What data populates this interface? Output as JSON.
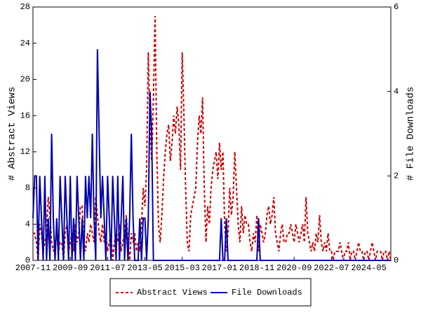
{
  "chart_data": {
    "type": "line",
    "x": [
      "2007-11",
      "2007-12",
      "2008-01",
      "2008-02",
      "2008-03",
      "2008-04",
      "2008-05",
      "2008-06",
      "2008-07",
      "2008-08",
      "2008-09",
      "2008-10",
      "2008-11",
      "2008-12",
      "2009-01",
      "2009-02",
      "2009-03",
      "2009-04",
      "2009-05",
      "2009-06",
      "2009-07",
      "2009-08",
      "2009-09",
      "2009-10",
      "2009-11",
      "2009-12",
      "2010-01",
      "2010-02",
      "2010-03",
      "2010-04",
      "2010-05",
      "2010-06",
      "2010-07",
      "2010-08",
      "2010-09",
      "2010-10",
      "2010-11",
      "2010-12",
      "2011-01",
      "2011-02",
      "2011-03",
      "2011-04",
      "2011-05",
      "2011-06",
      "2011-07",
      "2011-08",
      "2011-09",
      "2011-10",
      "2011-11",
      "2011-12",
      "2012-01",
      "2012-02",
      "2012-03",
      "2012-04",
      "2012-05",
      "2012-06",
      "2012-07",
      "2012-08",
      "2012-09",
      "2012-10",
      "2012-11",
      "2012-12",
      "2013-01",
      "2013-02",
      "2013-03",
      "2013-04",
      "2013-05",
      "2013-06",
      "2013-07",
      "2013-08",
      "2013-09",
      "2013-10",
      "2013-11",
      "2013-12",
      "2014-01",
      "2014-02",
      "2014-03",
      "2014-04",
      "2014-05",
      "2014-06",
      "2014-07",
      "2014-08",
      "2014-09",
      "2014-10",
      "2014-11",
      "2014-12",
      "2015-01",
      "2015-02",
      "2015-03",
      "2015-04",
      "2015-05",
      "2015-06",
      "2015-07",
      "2015-08",
      "2015-09",
      "2015-10",
      "2015-11",
      "2015-12",
      "2016-01",
      "2016-02",
      "2016-03",
      "2016-04",
      "2016-05",
      "2016-06",
      "2016-07",
      "2016-08",
      "2016-09",
      "2016-10",
      "2016-11",
      "2016-12",
      "2017-01",
      "2017-02",
      "2017-03",
      "2017-04",
      "2017-05",
      "2017-06",
      "2017-07",
      "2017-08",
      "2017-09",
      "2017-10",
      "2017-11",
      "2017-12",
      "2018-01",
      "2018-02",
      "2018-03",
      "2018-04",
      "2018-05",
      "2018-06",
      "2018-07",
      "2018-08",
      "2018-09",
      "2018-10",
      "2018-11",
      "2018-12",
      "2019-01",
      "2019-02",
      "2019-03",
      "2019-04",
      "2019-05",
      "2019-06",
      "2019-07",
      "2019-08",
      "2019-09",
      "2019-10",
      "2019-11",
      "2019-12",
      "2020-01",
      "2020-02",
      "2020-03",
      "2020-04",
      "2020-05",
      "2020-06",
      "2020-07",
      "2020-08",
      "2020-09",
      "2020-10",
      "2020-11",
      "2020-12",
      "2021-01",
      "2021-02",
      "2021-03",
      "2021-04",
      "2021-05",
      "2021-06",
      "2021-07",
      "2021-08",
      "2021-09",
      "2021-10",
      "2021-11",
      "2021-12",
      "2022-01",
      "2022-02",
      "2022-03",
      "2022-04",
      "2022-05",
      "2022-06",
      "2022-07",
      "2022-08",
      "2022-09",
      "2022-10",
      "2022-11",
      "2022-12",
      "2023-01",
      "2023-02",
      "2023-03",
      "2023-04",
      "2023-05",
      "2023-06",
      "2023-07",
      "2023-08",
      "2023-09",
      "2023-10",
      "2023-11",
      "2023-12",
      "2024-01",
      "2024-02",
      "2024-03",
      "2024-04",
      "2024-05",
      "2024-06",
      "2024-07",
      "2024-08",
      "2024-09",
      "2024-10",
      "2024-11",
      "2024-12",
      "2025-01",
      "2025-02",
      "2025-03",
      "2025-04",
      "2025-05",
      "2025-06"
    ],
    "xticks": [
      "2007-11",
      "2009-09",
      "2011-07",
      "2013-05",
      "2015-03",
      "2017-01",
      "2018-11",
      "2020-09",
      "2022-07",
      "2024-05"
    ],
    "ylabel": "# Abstract Views",
    "y2label": "# File Downloads",
    "ylim": [
      0,
      28
    ],
    "yticks": [
      0,
      4,
      8,
      12,
      16,
      20,
      24,
      28
    ],
    "y2lim": [
      0,
      6
    ],
    "y2ticks": [
      0,
      2,
      4,
      6
    ],
    "legend": "bottom",
    "series": [
      {
        "name": "Abstract Views",
        "color": "#cc0000",
        "dash": true,
        "values": [
          3,
          3,
          2,
          0,
          4,
          3,
          1,
          2,
          3,
          7,
          5,
          2,
          1,
          2,
          3,
          1,
          2,
          2,
          0,
          3,
          4,
          1,
          2,
          3,
          1,
          4,
          2,
          3,
          6,
          6,
          2,
          1,
          3,
          2,
          4,
          3,
          2,
          7,
          5,
          3,
          2,
          4,
          2,
          3,
          1,
          2,
          3,
          0,
          2,
          3,
          2,
          4,
          1,
          2,
          3,
          5,
          2,
          0,
          3,
          2,
          3,
          1,
          2,
          1,
          4,
          8,
          6,
          10,
          23,
          15,
          11,
          18,
          27,
          12,
          4,
          2,
          5,
          9,
          12,
          14,
          15,
          11,
          13,
          16,
          14,
          17,
          15,
          10,
          23,
          16,
          8,
          2,
          1,
          5,
          6,
          7,
          8,
          13,
          16,
          14,
          18,
          8,
          2,
          6,
          4,
          8,
          10,
          11,
          12,
          9,
          13,
          10,
          12,
          4,
          1,
          3,
          8,
          5,
          7,
          12,
          8,
          4,
          2,
          6,
          3,
          5,
          4,
          4,
          2,
          1,
          3,
          2,
          5,
          1,
          4,
          3,
          2,
          3,
          5,
          6,
          4,
          5,
          7,
          3,
          2,
          1,
          3,
          4,
          2,
          2,
          3,
          3,
          4,
          3,
          2,
          4,
          3,
          2,
          3,
          4,
          2,
          7,
          3,
          2,
          1,
          2,
          1,
          3,
          2,
          5,
          2,
          1,
          2,
          1,
          3,
          1,
          1,
          0,
          1,
          1,
          1,
          2,
          1,
          0,
          1,
          1,
          2,
          0,
          1,
          1,
          0,
          1,
          2,
          1,
          1,
          0,
          1,
          1,
          0,
          1,
          2,
          1,
          0,
          1,
          1,
          1,
          0,
          1,
          1,
          0,
          1,
          0
        ]
      },
      {
        "name": "File Downloads",
        "color": "#0000aa",
        "axis": "y2",
        "values": [
          1,
          2,
          2,
          0,
          2,
          1,
          0,
          2,
          0,
          1,
          0,
          3,
          1,
          0,
          1,
          0,
          2,
          1,
          0,
          2,
          1,
          0,
          2,
          0,
          1,
          0,
          2,
          1,
          0,
          1,
          0,
          2,
          1,
          2,
          1,
          3,
          1,
          0,
          5,
          3,
          1,
          2,
          1,
          0,
          2,
          1,
          0,
          2,
          1,
          0,
          2,
          0,
          1,
          2,
          0,
          1,
          0,
          1,
          3,
          1,
          0,
          0,
          0,
          1,
          0,
          1,
          1,
          0,
          1,
          4,
          3,
          0,
          0,
          0,
          0,
          0,
          0,
          0,
          0,
          0,
          0,
          0,
          0,
          0,
          0,
          0,
          0,
          0,
          0,
          0,
          0,
          0,
          0,
          0,
          0,
          0,
          0,
          0,
          0,
          0,
          0,
          0,
          0,
          0,
          0,
          0,
          0,
          0,
          0,
          0,
          0,
          1,
          0,
          0,
          1,
          0,
          0,
          0,
          0,
          0,
          0,
          0,
          0,
          0,
          0,
          0,
          0,
          0,
          0,
          0,
          0,
          0,
          0,
          1,
          0,
          0,
          0,
          0,
          0,
          0,
          0,
          0,
          0,
          0,
          0,
          0,
          0,
          0,
          0,
          0,
          0,
          0,
          0,
          0,
          0,
          0,
          0,
          0,
          0,
          0,
          0,
          0,
          0,
          0,
          0,
          0,
          0,
          0,
          0,
          0,
          0,
          0,
          0,
          0,
          0,
          0,
          0,
          0,
          0,
          0,
          0,
          0,
          0,
          0,
          0,
          0,
          0,
          0,
          0,
          0,
          0,
          0,
          0,
          0,
          0,
          0,
          0,
          0,
          0,
          0,
          0,
          0,
          0,
          0,
          0,
          0,
          0,
          0,
          0,
          0,
          0,
          0
        ]
      }
    ]
  }
}
